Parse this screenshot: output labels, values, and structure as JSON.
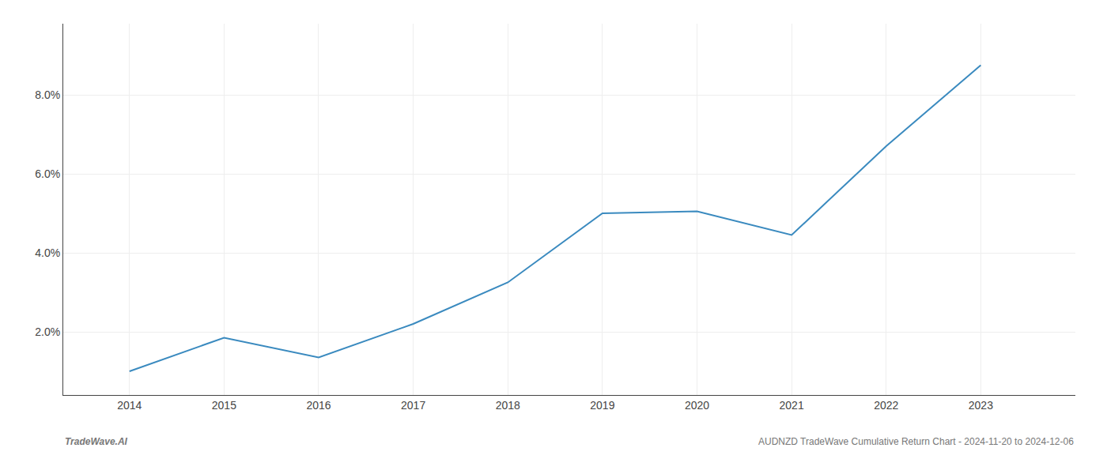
{
  "chart_data": {
    "type": "line",
    "x": [
      2014,
      2015,
      2016,
      2017,
      2018,
      2019,
      2020,
      2021,
      2022,
      2023
    ],
    "values": [
      1.0,
      1.85,
      1.35,
      2.2,
      3.25,
      5.0,
      5.05,
      4.45,
      6.7,
      8.75
    ],
    "color": "#3a8abf",
    "xlim": [
      2013.3,
      2024.0
    ],
    "xticks": [
      2014,
      2015,
      2016,
      2017,
      2018,
      2019,
      2020,
      2021,
      2022,
      2023
    ],
    "ylim": [
      0.4,
      9.8
    ],
    "yticks": [
      {
        "value": 2.0,
        "label": "2.0%"
      },
      {
        "value": 4.0,
        "label": "4.0%"
      },
      {
        "value": 6.0,
        "label": "6.0%"
      },
      {
        "value": 8.0,
        "label": "8.0%"
      }
    ],
    "grid": true,
    "annotations": [
      "TradeWave.AI",
      "AUDNZD TradeWave Cumulative Return Chart - 2024-11-20 to 2024-12-06"
    ]
  }
}
